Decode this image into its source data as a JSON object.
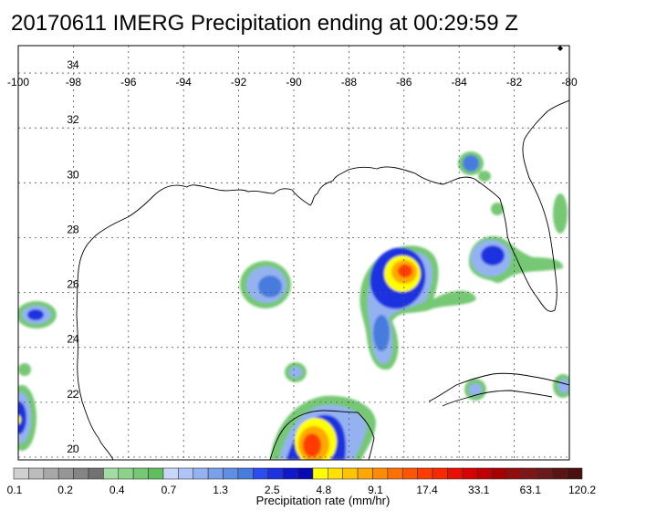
{
  "title": "20170611 IMERG Precipitation ending at 00:29:59 Z",
  "map": {
    "lon_ticks": [
      "-100",
      "-98",
      "-96",
      "-94",
      "-92",
      "-90",
      "-88",
      "-86",
      "-84",
      "-82",
      "-80"
    ],
    "lat_ticks": [
      "34",
      "32",
      "30",
      "28",
      "26",
      "24",
      "22",
      "20"
    ],
    "lon_range": [
      -100,
      -80
    ],
    "lat_range": [
      19.9,
      35
    ]
  },
  "colorbar": {
    "title": "Precipitation rate (mm/hr)",
    "labels": [
      "0.1",
      "0.2",
      "0.4",
      "0.7",
      "1.3",
      "2.5",
      "4.8",
      "9.1",
      "17.4",
      "33.1",
      "63.1",
      "120.2"
    ],
    "colors": [
      "#d0d0d0",
      "#bcbcbc",
      "#a8a8a8",
      "#969696",
      "#848484",
      "#727272",
      "#a2dca0",
      "#8cd28a",
      "#76c874",
      "#60be5e",
      "#c8d6fa",
      "#aec4f6",
      "#94b2f0",
      "#7aa0ea",
      "#608ee4",
      "#467cde",
      "#2a4cf0",
      "#1e32e0",
      "#1018cc",
      "#0808b4",
      "#ffff00",
      "#ffe000",
      "#ffc400",
      "#ffa800",
      "#ff8c00",
      "#ff7000",
      "#ff5400",
      "#ff3c00",
      "#f82800",
      "#e81000",
      "#d80000",
      "#c00000",
      "#a80000",
      "#901010",
      "#7c1818",
      "#6a1a1a",
      "#5a1414",
      "#4a1010"
    ]
  }
}
